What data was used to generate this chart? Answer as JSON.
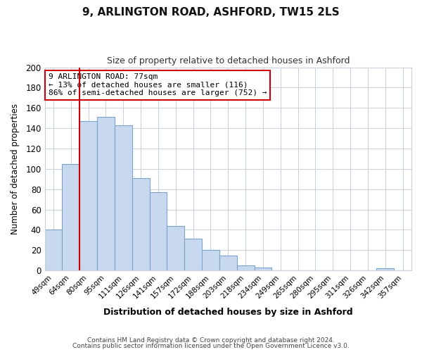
{
  "title": "9, ARLINGTON ROAD, ASHFORD, TW15 2LS",
  "subtitle": "Size of property relative to detached houses in Ashford",
  "xlabel": "Distribution of detached houses by size in Ashford",
  "ylabel": "Number of detached properties",
  "bar_labels": [
    "49sqm",
    "64sqm",
    "80sqm",
    "95sqm",
    "111sqm",
    "126sqm",
    "141sqm",
    "157sqm",
    "172sqm",
    "188sqm",
    "203sqm",
    "218sqm",
    "234sqm",
    "249sqm",
    "265sqm",
    "280sqm",
    "295sqm",
    "311sqm",
    "326sqm",
    "342sqm",
    "357sqm"
  ],
  "bar_values": [
    40,
    105,
    147,
    151,
    143,
    91,
    77,
    44,
    31,
    20,
    15,
    5,
    3,
    0,
    0,
    0,
    0,
    0,
    0,
    2,
    0
  ],
  "bar_color": "#c8d8ee",
  "bar_edge_color": "#7aa4cc",
  "reference_line_label": "9 ARLINGTON ROAD: 77sqm",
  "annotation_line1": "← 13% of detached houses are smaller (116)",
  "annotation_line2": "86% of semi-detached houses are larger (752) →",
  "annotation_box_color": "#ffffff",
  "annotation_box_edge": "#cc0000",
  "ref_line_color": "#cc0000",
  "ylim": [
    0,
    200
  ],
  "yticks": [
    0,
    20,
    40,
    60,
    80,
    100,
    120,
    140,
    160,
    180,
    200
  ],
  "footer_line1": "Contains HM Land Registry data © Crown copyright and database right 2024.",
  "footer_line2": "Contains public sector information licensed under the Open Government Licence v3.0.",
  "bg_color": "#ffffff",
  "plot_bg_color": "#ffffff",
  "grid_color": "#c8d0dc"
}
